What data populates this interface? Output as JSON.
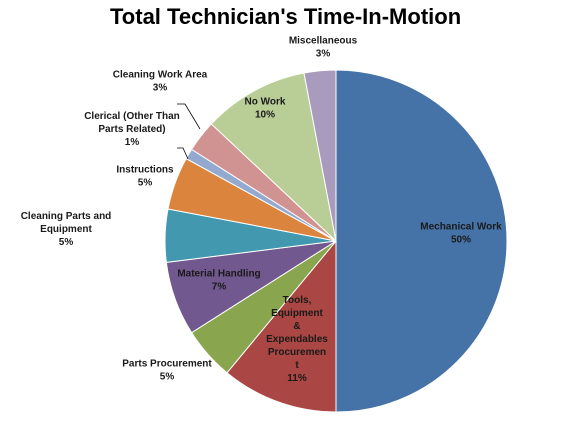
{
  "chart_data": {
    "type": "pie",
    "title": "Total Technician's Time-In-Motion",
    "slices": [
      {
        "label": "Mechanical Work",
        "percent_text": "50%",
        "value": 50,
        "color": "#4572A7"
      },
      {
        "label": "Tools, Equipment & Expendables Procurement",
        "label_lines": [
          "Tools,",
          "Equipment",
          "&",
          "Expendables",
          "Procuremen",
          "t"
        ],
        "percent_text": "11%",
        "value": 11,
        "color": "#AA4643"
      },
      {
        "label": "Parts Procurement",
        "percent_text": "5%",
        "value": 5,
        "color": "#89A54E"
      },
      {
        "label": "Material Handling",
        "percent_text": "7%",
        "value": 7,
        "color": "#71588F"
      },
      {
        "label": "Cleaning Parts and Equipment",
        "label_lines": [
          "Cleaning Parts and",
          "Equipment"
        ],
        "percent_text": "5%",
        "value": 5,
        "color": "#4198AF"
      },
      {
        "label": "Instructions",
        "percent_text": "5%",
        "value": 5,
        "color": "#DB843D"
      },
      {
        "label": "Clerical (Other Than Parts Related)",
        "label_lines": [
          "Clerical (Other Than",
          "Parts Related)"
        ],
        "percent_text": "1%",
        "value": 1,
        "color": "#93A9CF"
      },
      {
        "label": "Cleaning Work Area",
        "percent_text": "3%",
        "value": 3,
        "color": "#D19392"
      },
      {
        "label": "No Work",
        "percent_text": "10%",
        "value": 10,
        "color": "#B9CD96"
      },
      {
        "label": "Miscellaneous",
        "percent_text": "3%",
        "value": 3,
        "color": "#A99BBD"
      }
    ],
    "legend": "none"
  }
}
